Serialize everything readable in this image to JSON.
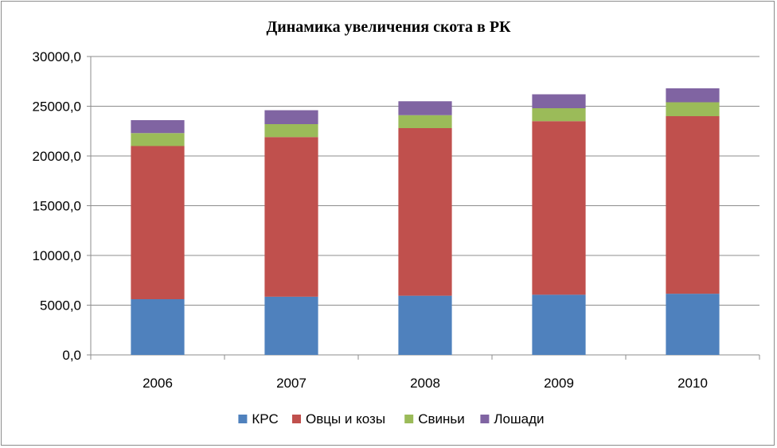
{
  "chart_data": {
    "type": "bar",
    "stacked": true,
    "title": "Динамика увеличения скота в РК",
    "categories": [
      "2006",
      "2007",
      "2008",
      "2009",
      "2010"
    ],
    "series": [
      {
        "name": "КРС",
        "color": "#4F81BD",
        "values": [
          5600,
          5850,
          5950,
          6050,
          6150
        ]
      },
      {
        "name": "Овцы и козы",
        "color": "#C0504D",
        "values": [
          15400,
          16050,
          16850,
          17450,
          17850
        ]
      },
      {
        "name": "Свиньи",
        "color": "#9BBB59",
        "values": [
          1300,
          1300,
          1300,
          1300,
          1400
        ]
      },
      {
        "name": "Лошади",
        "color": "#8064A2",
        "values": [
          1300,
          1400,
          1400,
          1400,
          1400
        ]
      }
    ],
    "y_ticks": [
      "0,0",
      "5000,0",
      "10000,0",
      "15000,0",
      "20000,0",
      "25000,0",
      "30000,0"
    ],
    "ylim": [
      0,
      30000
    ],
    "grid": true,
    "legend_position": "bottom"
  }
}
